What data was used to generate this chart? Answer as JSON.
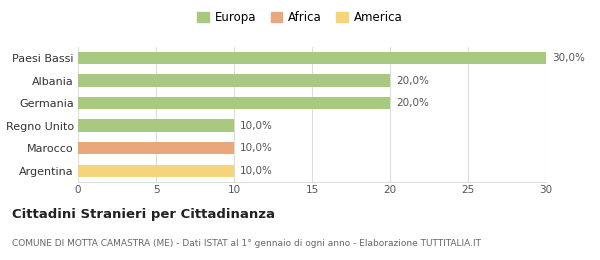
{
  "categories": [
    "Paesi Bassi",
    "Albania",
    "Germania",
    "Regno Unito",
    "Marocco",
    "Argentina"
  ],
  "values": [
    30.0,
    20.0,
    20.0,
    10.0,
    10.0,
    10.0
  ],
  "bar_colors": [
    "#a8c97f",
    "#a8c97f",
    "#a8c97f",
    "#a8c97f",
    "#e8a87c",
    "#f5d57a"
  ],
  "bar_labels": [
    "30,0%",
    "20,0%",
    "20,0%",
    "10,0%",
    "10,0%",
    "10,0%"
  ],
  "legend_labels": [
    "Europa",
    "Africa",
    "America"
  ],
  "legend_colors": [
    "#a8c97f",
    "#e8a87c",
    "#f5d57a"
  ],
  "xlim": [
    0,
    30
  ],
  "xticks": [
    0,
    5,
    10,
    15,
    20,
    25,
    30
  ],
  "title": "Cittadini Stranieri per Cittadinanza",
  "subtitle": "COMUNE DI MOTTA CAMASTRA (ME) - Dati ISTAT al 1° gennaio di ogni anno - Elaborazione TUTTITALIA.IT",
  "background_color": "#ffffff",
  "grid_color": "#dddddd",
  "bar_label_fontsize": 7.5,
  "title_fontsize": 9.5,
  "subtitle_fontsize": 6.5,
  "tick_fontsize": 7.5,
  "ylabel_fontsize": 8
}
